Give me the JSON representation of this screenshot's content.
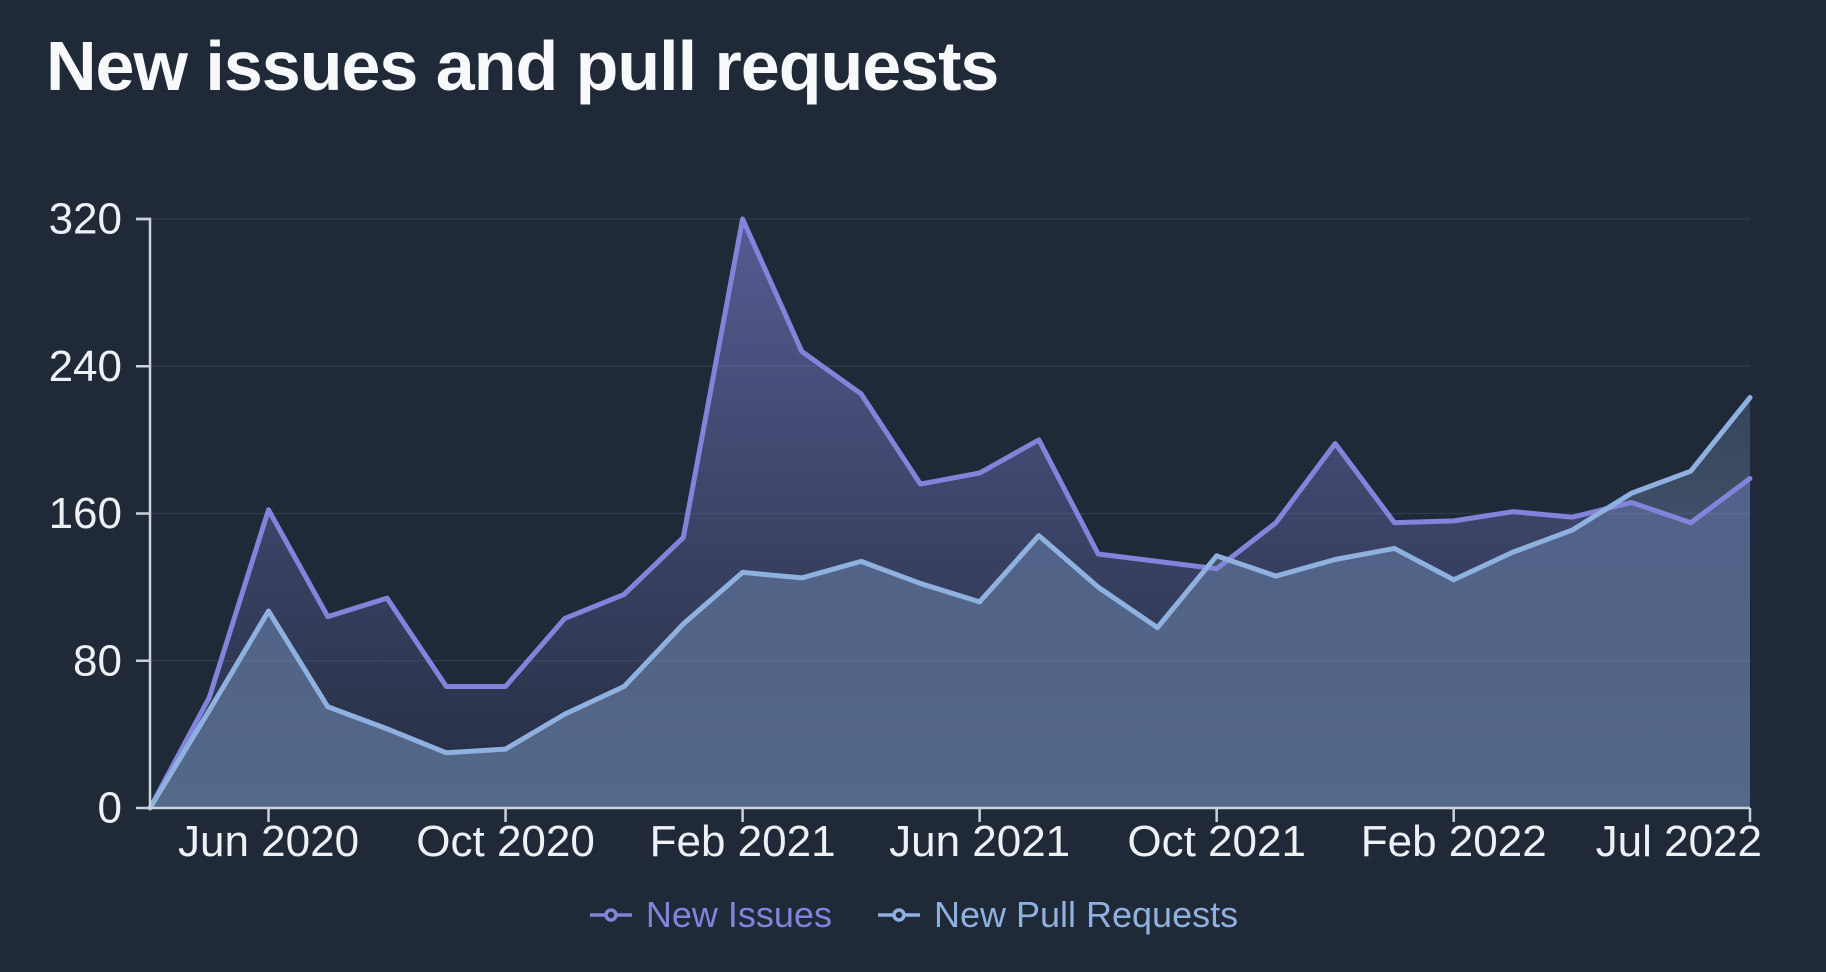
{
  "chart_data": {
    "type": "area",
    "title": "New issues and pull requests",
    "x": [
      "Apr 2020",
      "May 2020",
      "Jun 2020",
      "Jul 2020",
      "Aug 2020",
      "Sep 2020",
      "Oct 2020",
      "Nov 2020",
      "Dec 2020",
      "Jan 2021",
      "Feb 2021",
      "Mar 2021",
      "Apr 2021",
      "May 2021",
      "Jun 2021",
      "Jul 2021",
      "Aug 2021",
      "Sep 2021",
      "Oct 2021",
      "Nov 2021",
      "Dec 2021",
      "Jan 2022",
      "Feb 2022",
      "Mar 2022",
      "Apr 2022",
      "May 2022",
      "Jun 2022",
      "Jul 2022"
    ],
    "series": [
      {
        "name": "New Issues",
        "color": "#8184da",
        "values": [
          0,
          60,
          162,
          104,
          114,
          66,
          66,
          103,
          116,
          147,
          320,
          248,
          225,
          176,
          182,
          200,
          138,
          134,
          130,
          155,
          198,
          155,
          156,
          161,
          158,
          166,
          155,
          179
        ]
      },
      {
        "name": "New Pull Requests",
        "color": "#8eb1e0",
        "values": [
          0,
          53,
          107,
          55,
          43,
          30,
          32,
          51,
          66,
          100,
          128,
          125,
          134,
          122,
          112,
          148,
          120,
          98,
          137,
          126,
          135,
          141,
          124,
          139,
          151,
          171,
          183,
          223
        ]
      }
    ],
    "ylim": [
      0,
      320
    ],
    "y_ticks": [
      0,
      80,
      160,
      240,
      320
    ],
    "x_tick_labels": [
      "Jun 2020",
      "Oct 2020",
      "Feb 2021",
      "Jun 2021",
      "Oct 2021",
      "Feb 2022",
      "Jul 2022"
    ],
    "x_tick_indices": [
      2,
      6,
      10,
      14,
      18,
      22,
      27
    ],
    "grid": true,
    "legend_position": "bottom"
  },
  "colors": {
    "background": "#1f2938",
    "title": "#f7f9fb",
    "axis_labels": "#eef1f5",
    "axis_line": "#ccd2da",
    "gridline": "rgba(255,255,255,0.07)"
  }
}
